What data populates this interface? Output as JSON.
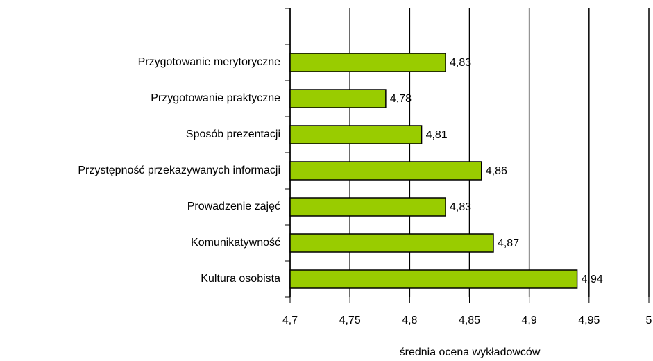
{
  "chart_data": {
    "type": "bar",
    "orientation": "horizontal",
    "x_label": "średnia ocena wykładowców",
    "categories": [
      null,
      "Przygotowanie merytoryczne",
      "Przygotowanie praktyczne",
      "Sposób prezentacji",
      "Przystępność przekazywanych informacji",
      "Prowadzenie zajęć",
      "Komunikatywność",
      "Kultura osobista"
    ],
    "values": [
      null,
      4.83,
      4.78,
      4.81,
      4.86,
      4.83,
      4.87,
      4.94
    ],
    "value_labels": [
      null,
      "4,83",
      "4,78",
      "4,81",
      "4,86",
      "4,83",
      "4,87",
      "4,94"
    ],
    "color": "#99cc00",
    "xlim": [
      4.7,
      5
    ],
    "xticks": [
      {
        "value": 4.7,
        "label": "4,7"
      },
      {
        "value": 4.75,
        "label": "4,75"
      },
      {
        "value": 4.8,
        "label": "4,8"
      },
      {
        "value": 4.85,
        "label": "4,85"
      },
      {
        "value": 4.9,
        "label": "4,9"
      },
      {
        "value": 4.95,
        "label": "4,95"
      },
      5
    ],
    "grid": true
  }
}
